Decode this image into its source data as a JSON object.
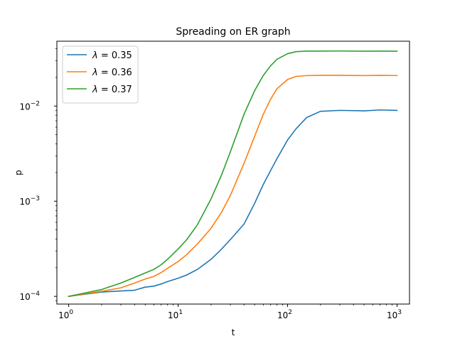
{
  "chart_data": {
    "type": "line",
    "title": "Spreading on ER graph",
    "xlabel": "t",
    "ylabel": "p",
    "xscale": "log",
    "yscale": "log",
    "xlim": [
      0.78,
      1300
    ],
    "ylim": [
      8.3e-05,
      0.048
    ],
    "x_ticks": [
      {
        "value": 1,
        "base": "10",
        "exp": "0"
      },
      {
        "value": 10,
        "base": "10",
        "exp": "1"
      },
      {
        "value": 100,
        "base": "10",
        "exp": "2"
      },
      {
        "value": 1000,
        "base": "10",
        "exp": "3"
      }
    ],
    "y_ticks": [
      {
        "value": 0.0001,
        "base": "10",
        "exp": "−4"
      },
      {
        "value": 0.001,
        "base": "10",
        "exp": "−3"
      },
      {
        "value": 0.01,
        "base": "10",
        "exp": "−2"
      }
    ],
    "grid": false,
    "legend_position": "top-left",
    "series": [
      {
        "name": "λ = 0.35",
        "legend_symbol": "λ",
        "legend_rest": " = 0.35",
        "color": "#1f77b4",
        "x": [
          1,
          2,
          3,
          4,
          5,
          6,
          7,
          8,
          10,
          12,
          15,
          20,
          25,
          30,
          40,
          50,
          60,
          70,
          80,
          100,
          120,
          150,
          200,
          300,
          500,
          700,
          1000
        ],
        "y": [
          0.0001,
          0.000111,
          0.000114,
          0.000116,
          0.000125,
          0.000128,
          0.000135,
          0.000143,
          0.000155,
          0.000168,
          0.000192,
          0.000245,
          0.000315,
          0.000395,
          0.000575,
          0.00095,
          0.0015,
          0.0021,
          0.0028,
          0.0044,
          0.0058,
          0.0076,
          0.0088,
          0.009,
          0.0089,
          0.0091,
          0.009
        ]
      },
      {
        "name": "λ = 0.36",
        "legend_symbol": "λ",
        "legend_rest": " = 0.36",
        "color": "#ff7f0e",
        "x": [
          1,
          2,
          3,
          4,
          5,
          6,
          7,
          8,
          10,
          12,
          15,
          20,
          25,
          30,
          40,
          50,
          60,
          70,
          80,
          100,
          120,
          150,
          200,
          300,
          500,
          700,
          1000
        ],
        "y": [
          0.0001,
          0.000113,
          0.000123,
          0.000138,
          0.000152,
          0.000162,
          0.000178,
          0.000197,
          0.000232,
          0.000275,
          0.000355,
          0.00052,
          0.00077,
          0.00115,
          0.0025,
          0.0048,
          0.0082,
          0.0118,
          0.0152,
          0.019,
          0.0205,
          0.0209,
          0.021,
          0.021,
          0.0209,
          0.021,
          0.0209
        ]
      },
      {
        "name": "λ = 0.37",
        "legend_symbol": "λ",
        "legend_rest": " = 0.37",
        "color": "#2ca02c",
        "x": [
          1,
          2,
          3,
          4,
          5,
          6,
          7,
          8,
          10,
          12,
          15,
          20,
          25,
          30,
          40,
          50,
          60,
          70,
          80,
          100,
          120,
          150,
          200,
          300,
          500,
          700,
          1000
        ],
        "y": [
          0.0001,
          0.000118,
          0.000138,
          0.000158,
          0.000176,
          0.000192,
          0.000215,
          0.000245,
          0.000315,
          0.000395,
          0.000565,
          0.00106,
          0.0019,
          0.0033,
          0.0082,
          0.0145,
          0.021,
          0.0265,
          0.031,
          0.0355,
          0.0373,
          0.0378,
          0.0378,
          0.0379,
          0.0377,
          0.0378,
          0.0377
        ]
      }
    ]
  }
}
